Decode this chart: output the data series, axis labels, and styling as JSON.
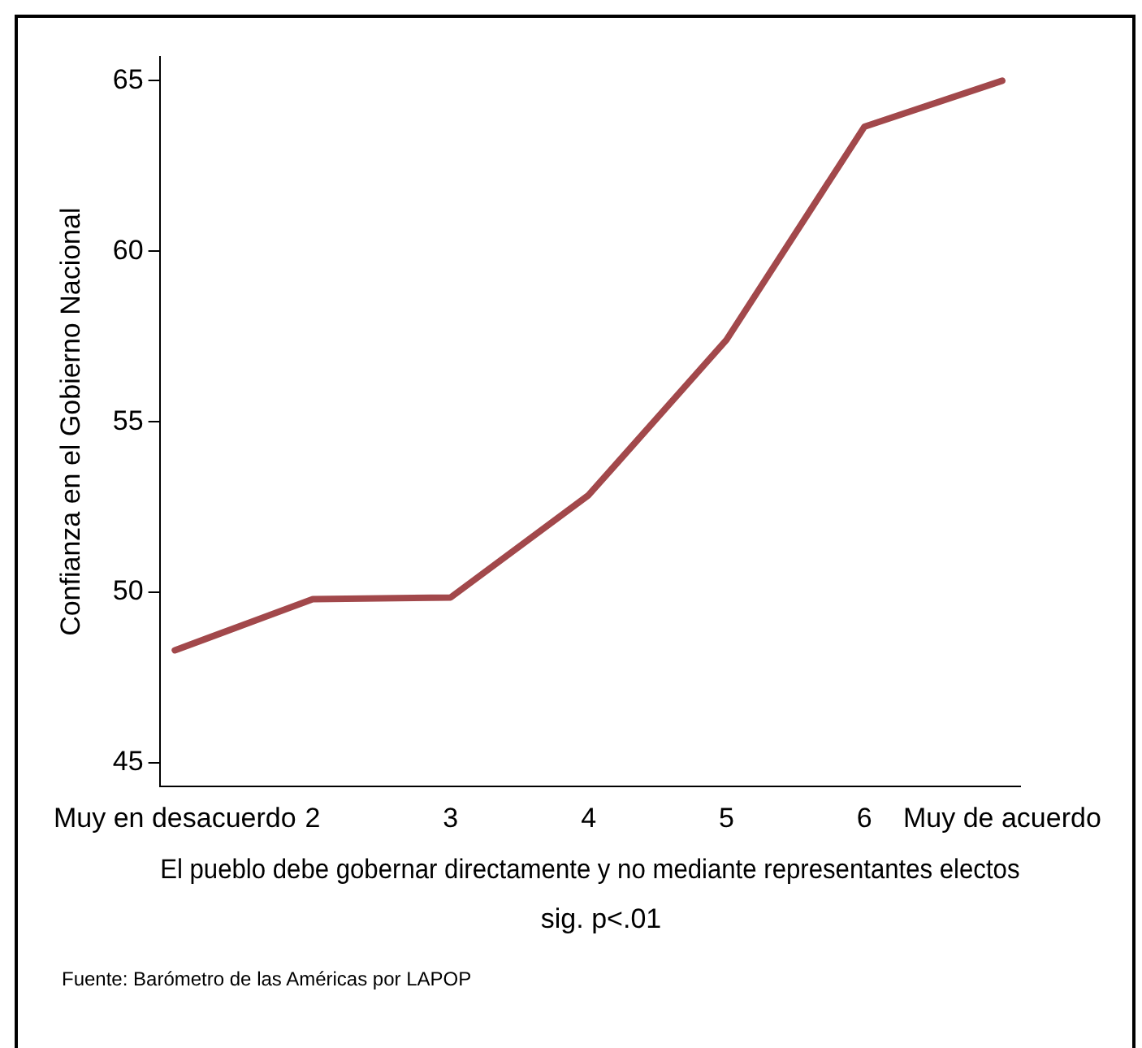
{
  "chart_data": {
    "type": "line",
    "ylabel": "Confianza en el Gobierno Nacional",
    "xlabel": "El pueblo debe gobernar directamente y no mediante representantes electos",
    "annotations": [
      "sig. p<.01",
      "Fuente: Barómetro de las Américas por LAPOP"
    ],
    "x": [
      1,
      2,
      3,
      4,
      5,
      6,
      7
    ],
    "series": [
      {
        "color": "#a2484b",
        "values": [
          48.3,
          49.8,
          49.85,
          52.85,
          57.4,
          63.65,
          65.0
        ]
      }
    ],
    "xlim": [
      0.89,
      7.13
    ],
    "xticks": [
      {
        "value": 1,
        "label": "Muy en desacuerdo"
      },
      2,
      3,
      4,
      5,
      6,
      {
        "value": 7,
        "label": "Muy de acuerdo"
      }
    ],
    "ylim": [
      44.3,
      65.7
    ],
    "yticks": [
      45,
      50,
      55,
      60,
      65
    ],
    "grid": false,
    "legend": false,
    "marker": "none",
    "line_style": "solid"
  }
}
